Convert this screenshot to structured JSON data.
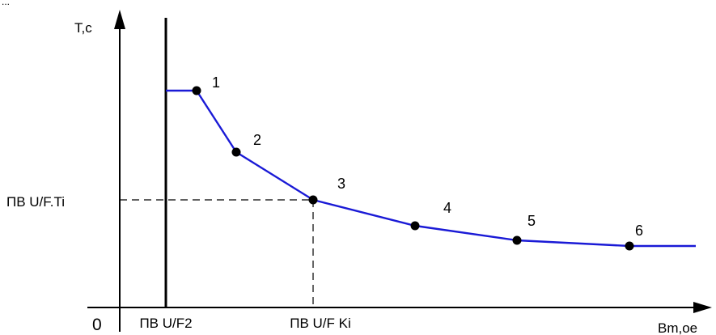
{
  "diagram": {
    "top_fragment": "...",
    "y_axis_label": "T,c",
    "x_axis_label": "Bm,oe",
    "origin_label": "0",
    "y_marker_label": "ПВ U/F.Ti",
    "x_marker_1_label": "ПВ U/F2",
    "x_marker_2_label": "ПВ U/F Ki",
    "point_labels": [
      "1",
      "2",
      "3",
      "4",
      "5",
      "6"
    ],
    "colors": {
      "curve": "#1a1ad6",
      "axes": "#000000",
      "points": "#000000"
    }
  }
}
